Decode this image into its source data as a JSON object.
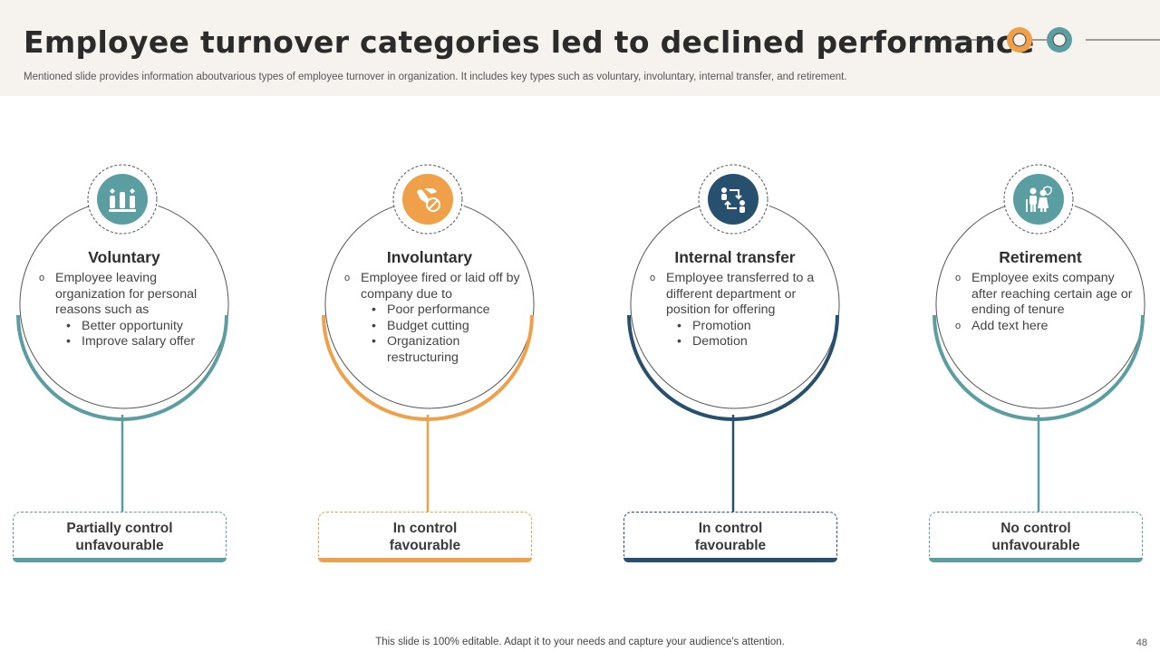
{
  "header": {
    "title": "Employee turnover categories led to declined performance",
    "subtitle": "Mentioned slide provides information aboutvarious types of employee turnover in organization. It includes key types such as voluntary, involuntary, internal transfer, and retirement."
  },
  "colors": {
    "teal": "#5b9ea2",
    "orange": "#f0a048",
    "navy": "#27506e",
    "header_bg": "#f6f3ee"
  },
  "categories": [
    {
      "title": "Voluntary",
      "icon": "raised-hands-hearts-icon",
      "accent": "#5b9ea2",
      "bullets": [
        {
          "text": "Employee leaving organization for personal reasons such as",
          "subs": [
            "Better opportunity",
            "Improve salary offer"
          ]
        }
      ],
      "tag": {
        "line1": "Partially control",
        "line2": "unfavourable"
      }
    },
    {
      "title": "Involuntary",
      "icon": "hand-prohibited-icon",
      "accent": "#f0a048",
      "bullets": [
        {
          "text": "Employee fired or laid off by company due to",
          "subs": [
            "Poor performance",
            "Budget cutting",
            "Organization restructuring"
          ]
        }
      ],
      "tag": {
        "line1": "In control",
        "line2": "favourable"
      }
    },
    {
      "title": "Internal transfer",
      "icon": "people-transfer-icon",
      "accent": "#27506e",
      "bullets": [
        {
          "text": "Employee transferred to a different department or position for offering",
          "subs": [
            "Promotion",
            "Demotion"
          ]
        }
      ],
      "tag": {
        "line1": "In control",
        "line2": "favourable"
      }
    },
    {
      "title": "Retirement",
      "icon": "elderly-couple-icon",
      "accent": "#5b9ea2",
      "bullets": [
        {
          "text": "Employee exits company after reaching certain age or ending of tenure",
          "subs": []
        },
        {
          "text": "Add text here",
          "subs": []
        }
      ],
      "tag": {
        "line1": "No control",
        "line2": "unfavourable"
      }
    }
  ],
  "footer": {
    "text": "This slide is 100% editable. Adapt it to your needs and capture your audience's attention.",
    "page": "48"
  }
}
